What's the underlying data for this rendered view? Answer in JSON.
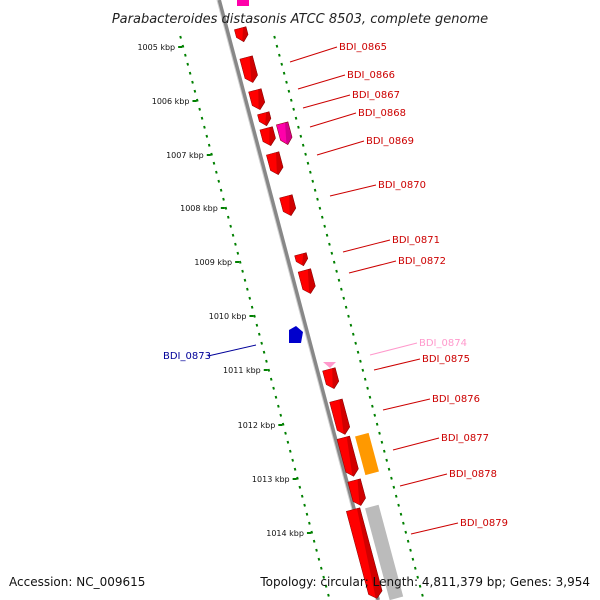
{
  "title": "Parabacteroides distasonis ATCC 8503, complete genome",
  "footer": {
    "accession": "Accession: NC_009615",
    "summary": "Topology: circular; Length: 4,811,379 bp; Genes: 3,954"
  },
  "colors": {
    "forward_gene": "#ff0000",
    "forward_label": "#cc0000",
    "reverse_gene": "#0000cc",
    "reverse_label": "#000099",
    "magenta_gene": "#ff00aa",
    "pink_gene": "#ff99cc",
    "orange_gene": "#ff9900",
    "grey_gene": "#bbbbbb",
    "backbone": "#888888",
    "tick": "#008000"
  },
  "axis": {
    "unit": "kbp",
    "ticks": [
      "1005 kbp",
      "1006 kbp",
      "1007 kbp",
      "1008 kbp",
      "1009 kbp",
      "1010 kbp",
      "1011 kbp",
      "1012 kbp",
      "1013 kbp",
      "1014 kbp"
    ]
  },
  "genes": [
    {
      "label": "BDI_0865",
      "strand": "forward",
      "color": "forward"
    },
    {
      "label": "BDI_0866",
      "strand": "forward",
      "color": "forward"
    },
    {
      "label": "BDI_0867",
      "strand": "forward",
      "color": "forward"
    },
    {
      "label": "BDI_0868",
      "strand": "forward",
      "color": "magenta"
    },
    {
      "label": "BDI_0869",
      "strand": "forward",
      "color": "forward"
    },
    {
      "label": "BDI_0870",
      "strand": "forward",
      "color": "forward"
    },
    {
      "label": "BDI_0871",
      "strand": "forward",
      "color": "forward"
    },
    {
      "label": "BDI_0872",
      "strand": "forward",
      "color": "forward"
    },
    {
      "label": "BDI_0873",
      "strand": "reverse",
      "color": "reverse"
    },
    {
      "label": "BDI_0874",
      "strand": "forward",
      "color": "pink"
    },
    {
      "label": "BDI_0875",
      "strand": "forward",
      "color": "forward"
    },
    {
      "label": "BDI_0876",
      "strand": "forward",
      "color": "forward"
    },
    {
      "label": "BDI_0877",
      "strand": "forward",
      "color": "orange"
    },
    {
      "label": "BDI_0878",
      "strand": "forward",
      "color": "forward"
    },
    {
      "label": "BDI_0879",
      "strand": "forward",
      "color": "forward"
    }
  ]
}
